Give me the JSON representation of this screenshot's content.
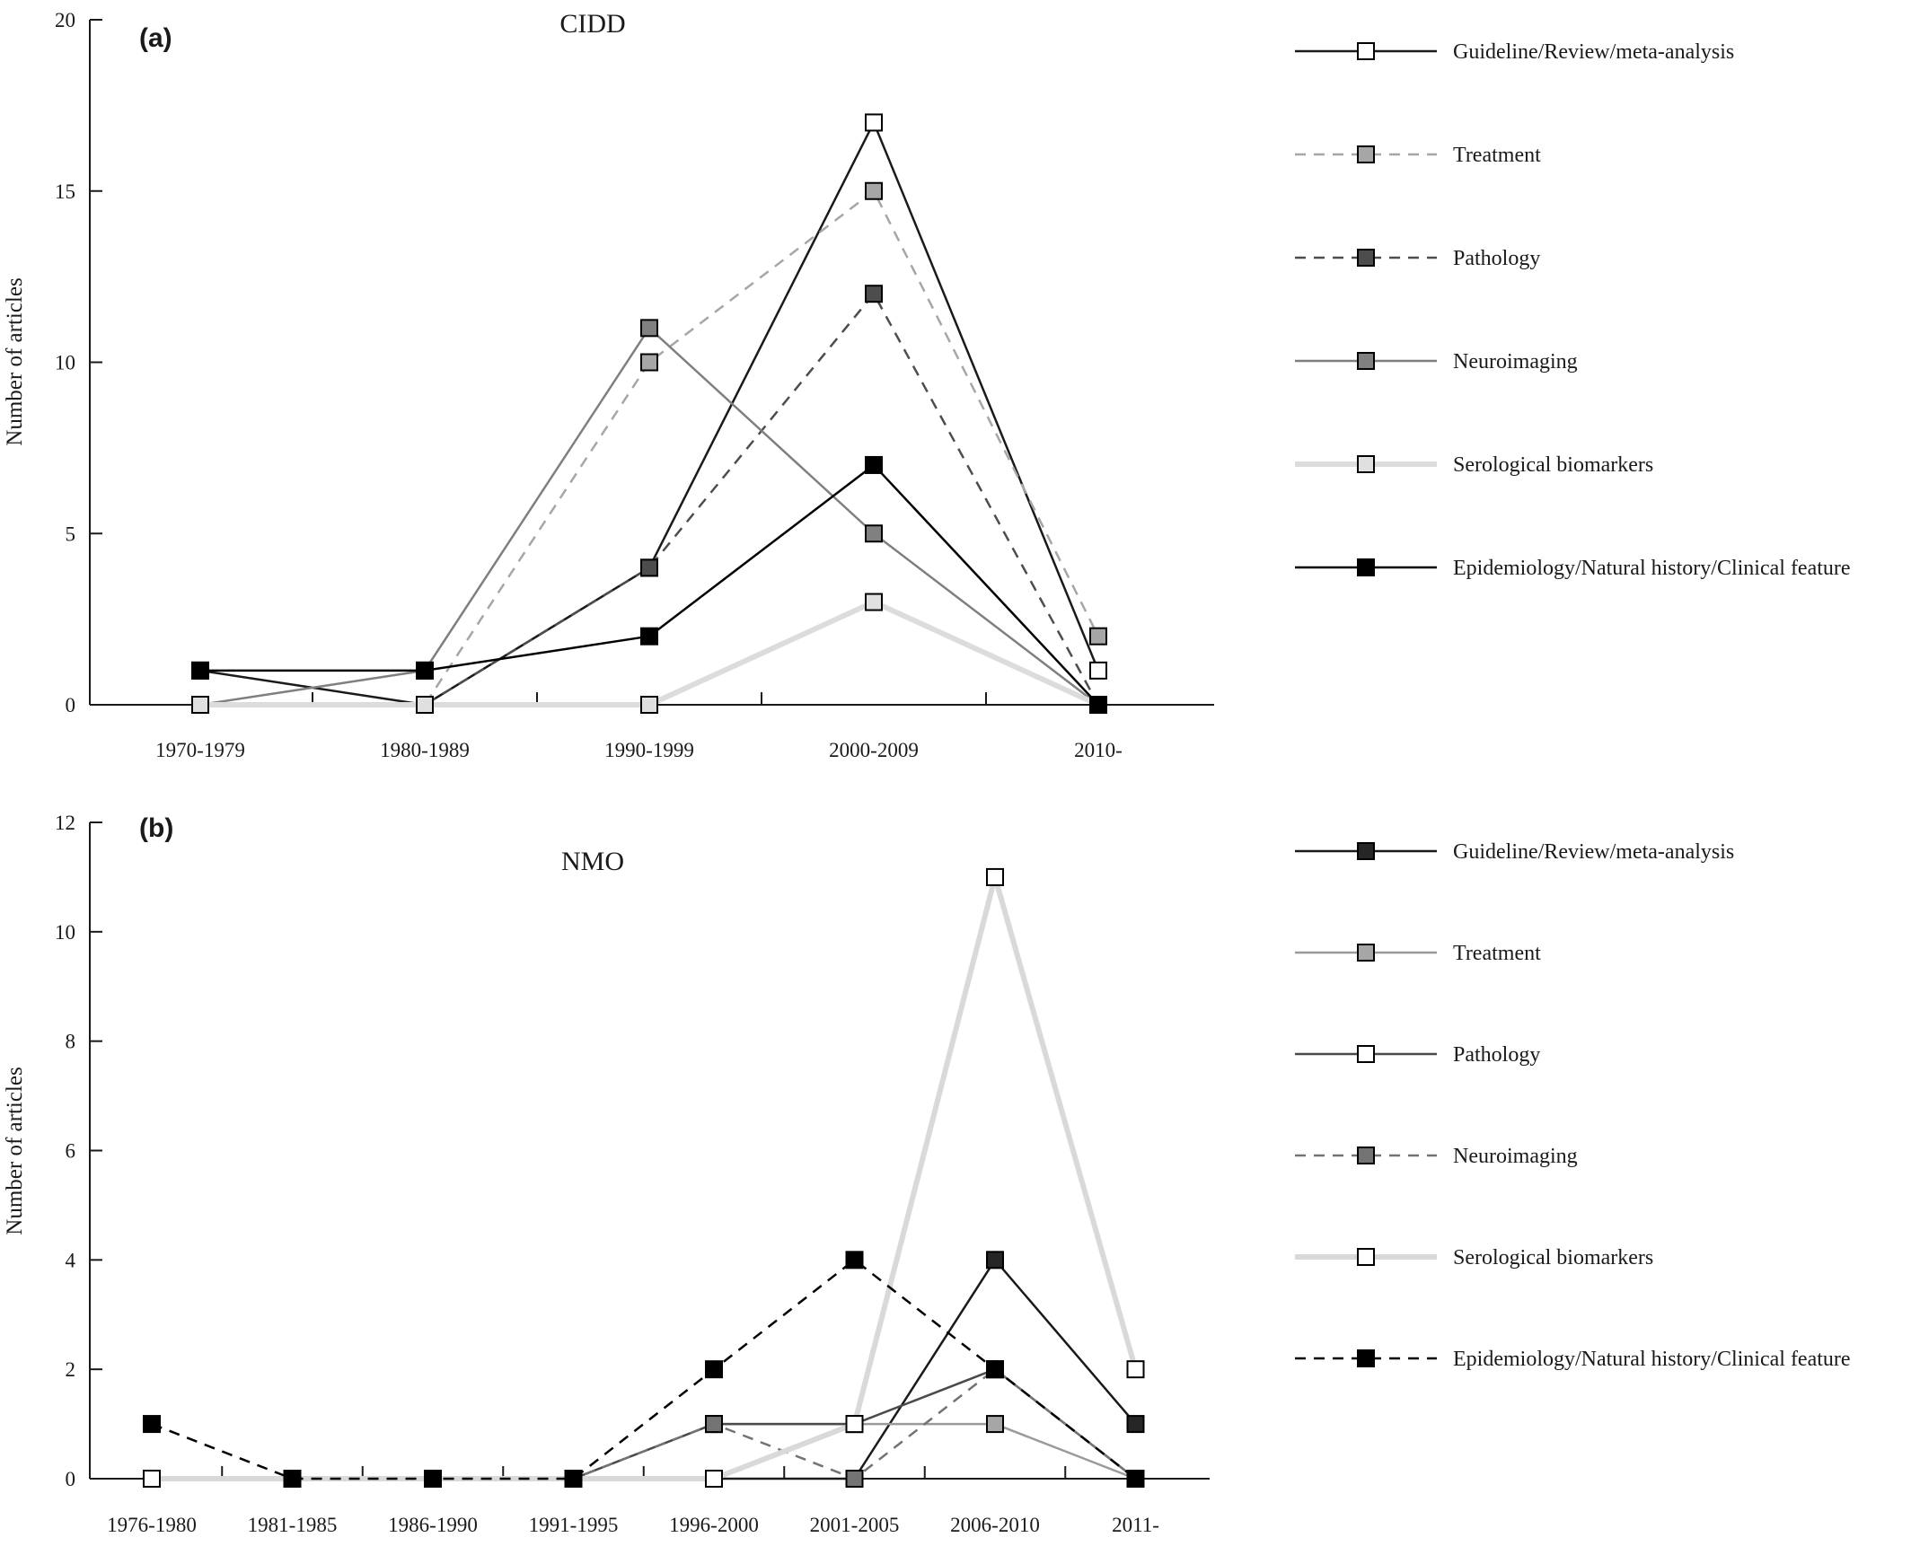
{
  "chart_data": [
    {
      "type": "line",
      "panel_label": "(a)",
      "title": "CIDD",
      "xlabel": "",
      "ylabel": "Number of articles",
      "categories": [
        "1970-1979",
        "1980-1989",
        "1990-1999",
        "2000-2009",
        "2010-"
      ],
      "ylim": [
        0,
        20
      ],
      "yticks": [
        0,
        5,
        10,
        15,
        20
      ],
      "grid": false,
      "legend_position": "right",
      "series": [
        {
          "name": "Guideline/Review/meta-analysis",
          "values": [
            1,
            0,
            4,
            17,
            1
          ],
          "line_color": "#1a1a1a",
          "marker_fill": "#ffffff",
          "dashed": false,
          "line_weight": "normal"
        },
        {
          "name": "Treatment",
          "values": [
            0,
            0,
            10,
            15,
            2
          ],
          "line_color": "#a6a6a6",
          "marker_fill": "#a6a6a6",
          "dashed": true,
          "line_weight": "normal"
        },
        {
          "name": "Pathology",
          "values": [
            0,
            0,
            4,
            12,
            0
          ],
          "line_color": "#4d4d4d",
          "marker_fill": "#4d4d4d",
          "dashed": true,
          "line_weight": "normal"
        },
        {
          "name": "Neuroimaging",
          "values": [
            0,
            1,
            11,
            5,
            0
          ],
          "line_color": "#7f7f7f",
          "marker_fill": "#808080",
          "dashed": false,
          "line_weight": "normal"
        },
        {
          "name": "Serological biomarkers",
          "values": [
            0,
            0,
            0,
            3,
            0
          ],
          "line_color": "#dcdcdc",
          "marker_fill": "#e0e0e0",
          "dashed": false,
          "line_weight": "heavy"
        },
        {
          "name": "Epidemiology/Natural history/Clinical feature",
          "values": [
            1,
            1,
            2,
            7,
            0
          ],
          "line_color": "#000000",
          "marker_fill": "#000000",
          "dashed": false,
          "line_weight": "normal"
        }
      ]
    },
    {
      "type": "line",
      "panel_label": "(b)",
      "title": "NMO",
      "xlabel": "",
      "ylabel": "Number of articles",
      "categories": [
        "1976-1980",
        "1981-1985",
        "1986-1990",
        "1991-1995",
        "1996-2000",
        "2001-2005",
        "2006-2010",
        "2011-"
      ],
      "ylim": [
        0,
        12
      ],
      "yticks": [
        0,
        2,
        4,
        6,
        8,
        10,
        12
      ],
      "grid": false,
      "legend_position": "right",
      "series": [
        {
          "name": "Guideline/Review/meta-analysis",
          "values": [
            0,
            0,
            0,
            0,
            0,
            0,
            4,
            1
          ],
          "line_color": "#1a1a1a",
          "marker_fill": "#262626",
          "dashed": false,
          "line_weight": "normal"
        },
        {
          "name": "Treatment",
          "values": [
            0,
            0,
            0,
            0,
            1,
            1,
            1,
            0
          ],
          "line_color": "#9a9a9a",
          "marker_fill": "#a6a6a6",
          "dashed": false,
          "line_weight": "normal"
        },
        {
          "name": "Pathology",
          "values": [
            0,
            0,
            0,
            0,
            1,
            1,
            2,
            0
          ],
          "line_color": "#4a4a4a",
          "marker_fill": "#ffffff",
          "dashed": false,
          "line_weight": "normal"
        },
        {
          "name": "Neuroimaging",
          "values": [
            0,
            0,
            0,
            0,
            1,
            0,
            2,
            0
          ],
          "line_color": "#737373",
          "marker_fill": "#737373",
          "dashed": true,
          "line_weight": "normal"
        },
        {
          "name": "Serological biomarkers",
          "values": [
            0,
            0,
            0,
            0,
            0,
            1,
            11,
            2
          ],
          "line_color": "#d9d9d9",
          "marker_fill": "#ffffff",
          "dashed": false,
          "line_weight": "heavy"
        },
        {
          "name": "Epidemiology/Natural history/Clinical feature",
          "values": [
            1,
            0,
            0,
            0,
            2,
            4,
            2,
            0
          ],
          "line_color": "#000000",
          "marker_fill": "#000000",
          "dashed": true,
          "line_weight": "normal"
        }
      ]
    }
  ]
}
